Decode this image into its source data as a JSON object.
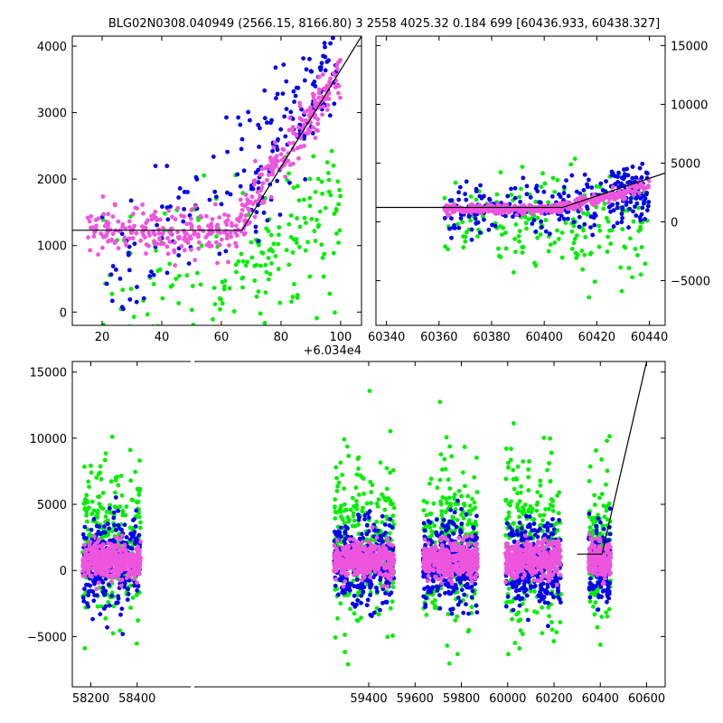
{
  "title": "BLG02N0308.040949 (2566.15, 8166.80)   3 2558 4025.32 0.184 699 [60436.933, 60438.327]",
  "colors": {
    "green": "#00ee00",
    "blue": "#0000ee",
    "pink": "#ee55dd",
    "line": "#000000"
  },
  "chart_data": [
    {
      "id": "top-left",
      "type": "scatter",
      "xlim": [
        10,
        107
      ],
      "ylim": [
        -200,
        4150
      ],
      "xticks": [
        20,
        40,
        60,
        80,
        100
      ],
      "yticks": [
        0,
        1000,
        2000,
        3000,
        4000
      ],
      "xtick_labels": [
        "20",
        "40",
        "60",
        "80",
        "100"
      ],
      "ytick_labels": [
        "0",
        "1000",
        "2000",
        "3000",
        "4000"
      ],
      "offset_label": "+6.034e4",
      "yaxis_side": "left",
      "model_line": {
        "x": [
          10,
          66.9,
          107
        ],
        "y": [
          1230,
          1230,
          4150
        ]
      },
      "clusters": [
        {
          "series": "green",
          "count": 140,
          "x": [
            20,
            100
          ],
          "y": [
            0,
            1500
          ],
          "spread": 1300
        },
        {
          "series": "green",
          "count": 60,
          "x": [
            60,
            100
          ],
          "y": [
            500,
            1800
          ],
          "spread": 500
        },
        {
          "series": "blue",
          "count": 120,
          "x": [
            20,
            100
          ],
          "y": [
            200,
            3800
          ],
          "spread": 900
        },
        {
          "series": "blue",
          "count": 80,
          "x": [
            70,
            100
          ],
          "y": [
            1500,
            4000
          ],
          "spread": 700
        },
        {
          "series": "pink",
          "count": 220,
          "x": [
            15,
            65
          ],
          "y": [
            1200,
            1200
          ],
          "spread": 350
        },
        {
          "series": "pink",
          "count": 200,
          "x": [
            65,
            100
          ],
          "y": [
            1300,
            3600
          ],
          "spread": 350
        }
      ]
    },
    {
      "id": "top-right",
      "type": "scatter",
      "xlim": [
        60336,
        60446
      ],
      "ylim": [
        -8800,
        15800
      ],
      "xticks": [
        60340,
        60360,
        60380,
        60400,
        60420,
        60440
      ],
      "yticks": [
        -5000,
        0,
        5000,
        10000,
        15000
      ],
      "xtick_labels": [
        "60340",
        "60360",
        "60380",
        "60400",
        "60420",
        "60440"
      ],
      "ytick_labels": [
        "−5000",
        "0",
        "5000",
        "10000",
        "15000"
      ],
      "yaxis_side": "right",
      "model_line": {
        "x": [
          60336,
          60407,
          60446
        ],
        "y": [
          1230,
          1230,
          4150
        ]
      },
      "clusters": [
        {
          "series": "green",
          "count": 200,
          "x": [
            60362,
            60440
          ],
          "y": [
            0,
            0
          ],
          "spread": 4500
        },
        {
          "series": "blue",
          "count": 200,
          "x": [
            60362,
            60440
          ],
          "y": [
            800,
            1500
          ],
          "spread": 2400
        },
        {
          "series": "blue",
          "count": 70,
          "x": [
            60425,
            60440
          ],
          "y": [
            3000,
            3000
          ],
          "spread": 1800
        },
        {
          "series": "pink",
          "count": 260,
          "x": [
            60362,
            60405
          ],
          "y": [
            1100,
            1100
          ],
          "spread": 350
        },
        {
          "series": "pink",
          "count": 150,
          "x": [
            60405,
            60440
          ],
          "y": [
            1200,
            3000
          ],
          "spread": 500
        }
      ]
    },
    {
      "id": "bottom",
      "type": "scatter",
      "xlim": [
        58120,
        60680
      ],
      "ylim": [
        -8800,
        15800
      ],
      "xticks": [
        58200,
        58400,
        59400,
        59600,
        59800,
        60000,
        60200,
        60400,
        60600
      ],
      "yticks": [
        -5000,
        0,
        5000,
        10000,
        15000
      ],
      "xtick_labels": [
        "58200",
        "58400",
        "59400",
        "59600",
        "59800",
        "60000",
        "60200",
        "60400",
        "60600"
      ],
      "ytick_labels": [
        "−5000",
        "0",
        "5000",
        "10000",
        "15000"
      ],
      "yaxis_side": "left",
      "model_line": {
        "x": [
          60300,
          60407,
          60600
        ],
        "y": [
          1230,
          1230,
          15800
        ]
      },
      "seasons": [
        {
          "label": "s1",
          "x": [
            58165,
            58415
          ]
        },
        {
          "label": "s2",
          "x": [
            59250,
            59510
          ]
        },
        {
          "label": "s3",
          "x": [
            59635,
            59870
          ]
        },
        {
          "label": "s4",
          "x": [
            59990,
            60230
          ]
        },
        {
          "label": "s5",
          "x": [
            60350,
            60445
          ]
        }
      ],
      "per_season": [
        {
          "series": "green",
          "count": 260,
          "y": [
            2000,
            2000
          ],
          "spread": 6500
        },
        {
          "series": "blue",
          "count": 320,
          "y": [
            500,
            500
          ],
          "spread": 3200
        },
        {
          "series": "pink",
          "count": 420,
          "y": [
            800,
            800
          ],
          "spread": 1300
        }
      ]
    }
  ]
}
